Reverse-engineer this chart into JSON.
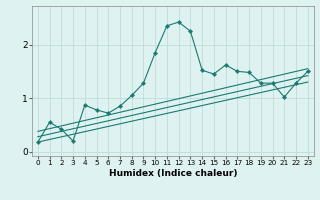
{
  "x_humidex": [
    0,
    1,
    2,
    3,
    4,
    5,
    6,
    7,
    8,
    9,
    10,
    11,
    12,
    13,
    14,
    15,
    16,
    17,
    18,
    19,
    20,
    21,
    22,
    23
  ],
  "line_jagged": [
    0.18,
    0.55,
    0.42,
    0.2,
    0.87,
    0.78,
    0.72,
    0.85,
    1.05,
    1.28,
    1.85,
    2.35,
    2.42,
    2.25,
    1.52,
    1.45,
    1.62,
    1.5,
    1.48,
    1.28,
    1.28,
    1.02,
    1.28,
    1.5
  ],
  "line_upper_pts": [
    [
      0,
      0.38
    ],
    [
      23,
      1.55
    ]
  ],
  "line_mid_pts": [
    [
      0,
      0.28
    ],
    [
      23,
      1.42
    ]
  ],
  "line_lower_pts": [
    [
      0,
      0.18
    ],
    [
      23,
      1.3
    ]
  ],
  "line_color": "#1a7a6e",
  "bg_color": "#dff2f2",
  "grid_color": "#c0dcdc",
  "xlabel": "Humidex (Indice chaleur)",
  "xlim": [
    -0.5,
    23.5
  ],
  "ylim": [
    -0.08,
    2.72
  ],
  "yticks": [
    0,
    1,
    2
  ],
  "xticks": [
    0,
    1,
    2,
    3,
    4,
    5,
    6,
    7,
    8,
    9,
    10,
    11,
    12,
    13,
    14,
    15,
    16,
    17,
    18,
    19,
    20,
    21,
    22,
    23
  ]
}
